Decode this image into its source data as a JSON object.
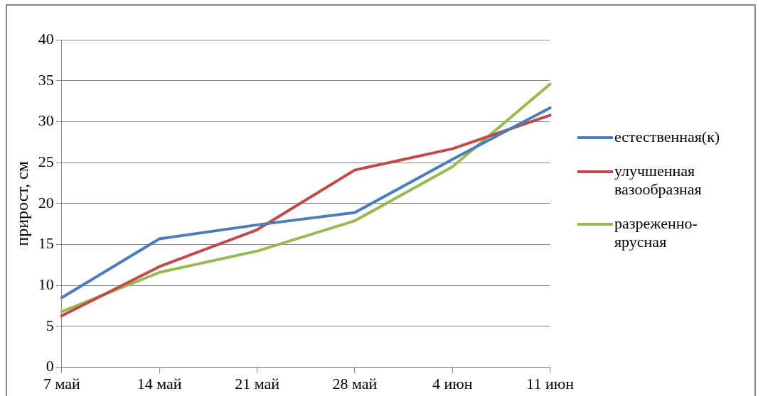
{
  "chart_data": {
    "type": "line",
    "ylabel": "прирост, см",
    "categories": [
      "7 май",
      "14 май",
      "21 май",
      "28 май",
      "4 июн",
      "11 июн"
    ],
    "series": [
      {
        "name": "естественная(к)",
        "color": "#4a7ebb",
        "values": [
          8.5,
          15.7,
          17.4,
          18.9,
          25.4,
          31.7
        ]
      },
      {
        "name": "улучшенная вазообразная",
        "color": "#be4b48",
        "values": [
          6.3,
          12.3,
          16.8,
          24.1,
          26.7,
          30.8
        ]
      },
      {
        "name": "разреженно-ярусная",
        "color": "#98b954",
        "values": [
          6.8,
          11.6,
          14.2,
          17.9,
          24.5,
          34.6
        ]
      }
    ],
    "ylim": [
      0,
      40
    ],
    "yticks": [
      0,
      5,
      10,
      15,
      20,
      25,
      30,
      35,
      40
    ],
    "grid": "y",
    "legend": "right",
    "marker": "none",
    "line_style": "solid"
  }
}
